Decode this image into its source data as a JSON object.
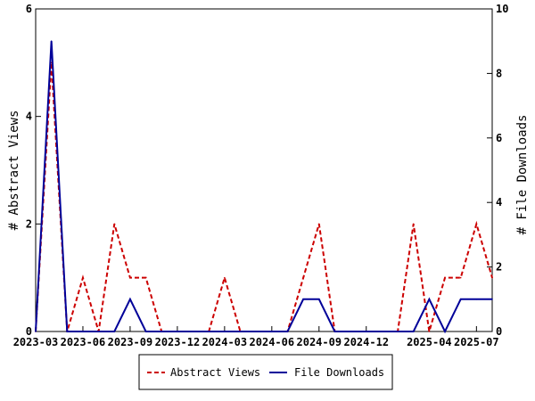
{
  "chart_data": {
    "type": "line",
    "x": [
      "2023-03",
      "2023-04",
      "2023-05",
      "2023-06",
      "2023-07",
      "2023-08",
      "2023-09",
      "2023-10",
      "2023-11",
      "2023-12",
      "2024-01",
      "2024-02",
      "2024-03",
      "2024-04",
      "2024-05",
      "2024-06",
      "2024-07",
      "2024-08",
      "2024-09",
      "2024-10",
      "2024-11",
      "2024-12",
      "2025-01",
      "2025-02",
      "2025-03",
      "2025-04",
      "2025-05",
      "2025-06",
      "2025-07",
      "2025-08"
    ],
    "x_ticks": [
      "2023-03",
      "2023-06",
      "2023-09",
      "2023-12",
      "2024-03",
      "2024-06",
      "2024-09",
      "2024-12",
      "2025-04",
      "2025-07"
    ],
    "series": [
      {
        "name": "Abstract Views",
        "axis": "left",
        "color": "#cc0000",
        "dash": "dashed",
        "values": [
          0,
          5,
          0,
          1,
          0,
          2,
          1,
          1,
          0,
          0,
          0,
          0,
          1,
          0,
          0,
          0,
          0,
          1,
          2,
          0,
          0,
          0,
          0,
          0,
          2,
          0,
          1,
          1,
          2,
          1
        ]
      },
      {
        "name": "File Downloads",
        "axis": "right",
        "color": "#000099",
        "dash": "solid",
        "values": [
          0,
          9,
          0,
          0,
          0,
          0,
          1,
          0,
          0,
          0,
          0,
          0,
          0,
          0,
          0,
          0,
          0,
          1,
          1,
          0,
          0,
          0,
          0,
          0,
          0,
          1,
          0,
          1,
          1,
          1
        ]
      }
    ],
    "ylabel": "# Abstract Views",
    "y2label": "# File Downloads",
    "ylim": [
      0,
      6
    ],
    "y2lim": [
      0,
      10
    ],
    "yticks": [
      0,
      2,
      4,
      6
    ],
    "y2ticks": [
      0,
      2,
      4,
      6,
      8,
      10
    ],
    "grid": false,
    "legend_position": "bottom"
  }
}
